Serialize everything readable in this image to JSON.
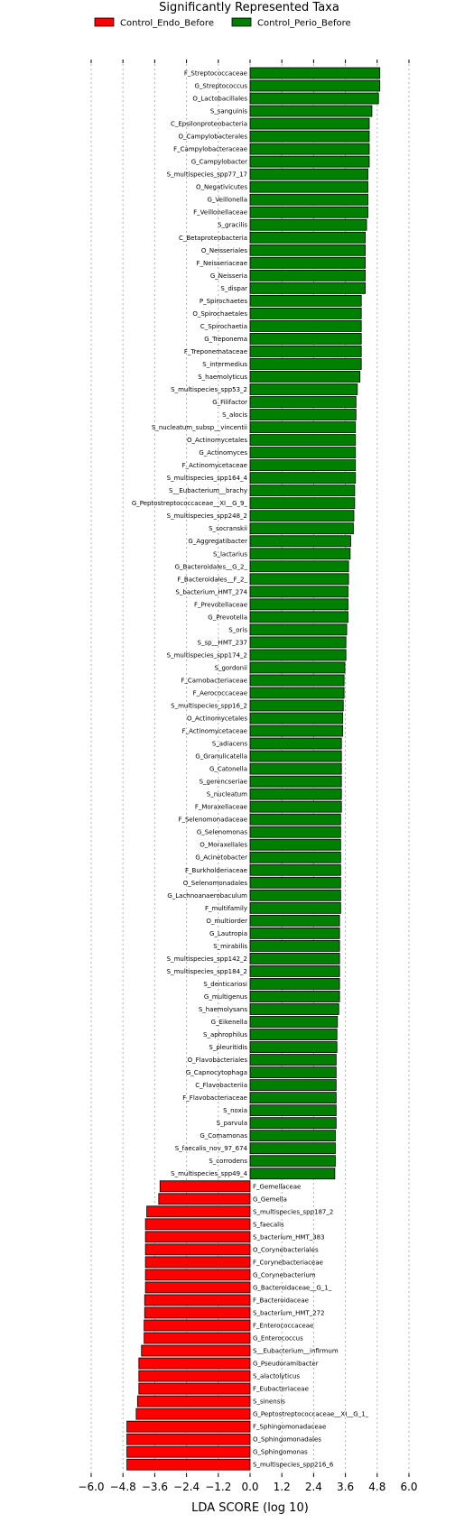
{
  "chart_data": {
    "type": "bar",
    "orientation": "horizontal",
    "title": "Significantly Represented Taxa",
    "xlabel": "LDA SCORE (log 10)",
    "ylabel": "",
    "xlim": [
      -6.0,
      6.0
    ],
    "xticks": [
      -6.0,
      -4.8,
      -3.6,
      -2.4,
      -1.2,
      0.0,
      1.2,
      2.4,
      3.6,
      4.8,
      6.0
    ],
    "xtick_labels": [
      "−6.0",
      "−4.8",
      "−3.6",
      "−2.4",
      "−1.2",
      "0.0",
      "1.2",
      "2.4",
      "3.6",
      "4.8",
      "6.0"
    ],
    "grid": "vertical dashed",
    "legend_position": "top",
    "series": [
      {
        "name": "Control_Endo_Before",
        "color": "#ff0000"
      },
      {
        "name": "Control_Perio_Before",
        "color": "#008000"
      }
    ],
    "bars": [
      {
        "label": "F_Streptococcaceae",
        "value": 4.9,
        "group": "Control_Perio_Before"
      },
      {
        "label": "G_Streptococcus",
        "value": 4.9,
        "group": "Control_Perio_Before"
      },
      {
        "label": "O_Lactobacillales",
        "value": 4.85,
        "group": "Control_Perio_Before"
      },
      {
        "label": "S_sanguinis",
        "value": 4.6,
        "group": "Control_Perio_Before"
      },
      {
        "label": "C_Epsilonproteobacteria",
        "value": 4.5,
        "group": "Control_Perio_Before"
      },
      {
        "label": "O_Campylobacterales",
        "value": 4.5,
        "group": "Control_Perio_Before"
      },
      {
        "label": "F_Campylobacteraceae",
        "value": 4.5,
        "group": "Control_Perio_Before"
      },
      {
        "label": "G_Campylobacter",
        "value": 4.5,
        "group": "Control_Perio_Before"
      },
      {
        "label": "S_multispecies_spp77_17",
        "value": 4.45,
        "group": "Control_Perio_Before"
      },
      {
        "label": "O_Negativicutes",
        "value": 4.45,
        "group": "Control_Perio_Before"
      },
      {
        "label": "G_Veillonella",
        "value": 4.45,
        "group": "Control_Perio_Before"
      },
      {
        "label": "F_Veillonellaceae",
        "value": 4.45,
        "group": "Control_Perio_Before"
      },
      {
        "label": "S_gracilis",
        "value": 4.4,
        "group": "Control_Perio_Before"
      },
      {
        "label": "C_Betaproteobacteria",
        "value": 4.35,
        "group": "Control_Perio_Before"
      },
      {
        "label": "O_Neisseriales",
        "value": 4.35,
        "group": "Control_Perio_Before"
      },
      {
        "label": "F_Neisseriaceae",
        "value": 4.35,
        "group": "Control_Perio_Before"
      },
      {
        "label": "G_Neisseria",
        "value": 4.35,
        "group": "Control_Perio_Before"
      },
      {
        "label": "S_dispar",
        "value": 4.35,
        "group": "Control_Perio_Before"
      },
      {
        "label": "P_Spirochaetes",
        "value": 4.2,
        "group": "Control_Perio_Before"
      },
      {
        "label": "O_Spirochaetales",
        "value": 4.2,
        "group": "Control_Perio_Before"
      },
      {
        "label": "C_Spirochaetia",
        "value": 4.2,
        "group": "Control_Perio_Before"
      },
      {
        "label": "G_Treponema",
        "value": 4.2,
        "group": "Control_Perio_Before"
      },
      {
        "label": "F_Treponemataceae",
        "value": 4.2,
        "group": "Control_Perio_Before"
      },
      {
        "label": "S_intermedius",
        "value": 4.2,
        "group": "Control_Perio_Before"
      },
      {
        "label": "S_haemolyticus",
        "value": 4.15,
        "group": "Control_Perio_Before"
      },
      {
        "label": "S_multispecies_spp53_2",
        "value": 4.05,
        "group": "Control_Perio_Before"
      },
      {
        "label": "G_Filifactor",
        "value": 4.0,
        "group": "Control_Perio_Before"
      },
      {
        "label": "S_alocis",
        "value": 4.0,
        "group": "Control_Perio_Before"
      },
      {
        "label": "S_nucleatum_subsp__vincentii",
        "value": 3.98,
        "group": "Control_Perio_Before"
      },
      {
        "label": "O_Actinomycetales",
        "value": 3.98,
        "group": "Control_Perio_Before"
      },
      {
        "label": "G_Actinomyces",
        "value": 3.98,
        "group": "Control_Perio_Before"
      },
      {
        "label": "F_Actinomycetaceae",
        "value": 3.98,
        "group": "Control_Perio_Before"
      },
      {
        "label": "S_multispecies_spp164_4",
        "value": 3.98,
        "group": "Control_Perio_Before"
      },
      {
        "label": "S__Eubacterium__brachy",
        "value": 3.95,
        "group": "Control_Perio_Before"
      },
      {
        "label": "G_Peptostreptococcaceae__XI__G_9_",
        "value": 3.95,
        "group": "Control_Perio_Before"
      },
      {
        "label": "S_multispecies_spp248_2",
        "value": 3.92,
        "group": "Control_Perio_Before"
      },
      {
        "label": "S_socranskii",
        "value": 3.9,
        "group": "Control_Perio_Before"
      },
      {
        "label": "G_Aggregatibacter",
        "value": 3.8,
        "group": "Control_Perio_Before"
      },
      {
        "label": "S_lactarius",
        "value": 3.78,
        "group": "Control_Perio_Before"
      },
      {
        "label": "G_Bacteroidales__G_2_",
        "value": 3.72,
        "group": "Control_Perio_Before"
      },
      {
        "label": "F_Bacteroidales__F_2_",
        "value": 3.72,
        "group": "Control_Perio_Before"
      },
      {
        "label": "S_bacterium_HMT_274",
        "value": 3.7,
        "group": "Control_Perio_Before"
      },
      {
        "label": "F_Prevotellaceae",
        "value": 3.7,
        "group": "Control_Perio_Before"
      },
      {
        "label": "G_Prevotella",
        "value": 3.7,
        "group": "Control_Perio_Before"
      },
      {
        "label": "S_oris",
        "value": 3.65,
        "group": "Control_Perio_Before"
      },
      {
        "label": "S_sp__HMT_237",
        "value": 3.62,
        "group": "Control_Perio_Before"
      },
      {
        "label": "S_multispecies_spp174_2",
        "value": 3.62,
        "group": "Control_Perio_Before"
      },
      {
        "label": "S_gordonii",
        "value": 3.58,
        "group": "Control_Perio_Before"
      },
      {
        "label": "F_Carnobacteriaceae",
        "value": 3.55,
        "group": "Control_Perio_Before"
      },
      {
        "label": "F_Aerococcaceae",
        "value": 3.55,
        "group": "Control_Perio_Before"
      },
      {
        "label": "S_multispecies_spp16_2",
        "value": 3.52,
        "group": "Control_Perio_Before"
      },
      {
        "label": "O_Actinomycetales",
        "value": 3.5,
        "group": "Control_Perio_Before"
      },
      {
        "label": "F_Actinomycetaceae",
        "value": 3.5,
        "group": "Control_Perio_Before"
      },
      {
        "label": "S_adiacens",
        "value": 3.45,
        "group": "Control_Perio_Before"
      },
      {
        "label": "G_Granulicatella",
        "value": 3.45,
        "group": "Control_Perio_Before"
      },
      {
        "label": "G_Catonella",
        "value": 3.45,
        "group": "Control_Perio_Before"
      },
      {
        "label": "S_gerencseriae",
        "value": 3.45,
        "group": "Control_Perio_Before"
      },
      {
        "label": "S_nucleatum",
        "value": 3.45,
        "group": "Control_Perio_Before"
      },
      {
        "label": "F_Moraxellaceae",
        "value": 3.45,
        "group": "Control_Perio_Before"
      },
      {
        "label": "F_Selenomonadaceae",
        "value": 3.42,
        "group": "Control_Perio_Before"
      },
      {
        "label": "G_Selenomonas",
        "value": 3.42,
        "group": "Control_Perio_Before"
      },
      {
        "label": "O_Moraxellales",
        "value": 3.42,
        "group": "Control_Perio_Before"
      },
      {
        "label": "G_Acinetobacter",
        "value": 3.42,
        "group": "Control_Perio_Before"
      },
      {
        "label": "F_Burkholderiaceae",
        "value": 3.42,
        "group": "Control_Perio_Before"
      },
      {
        "label": "O_Selenomonadales",
        "value": 3.42,
        "group": "Control_Perio_Before"
      },
      {
        "label": "G_Lachnoanaerobaculum",
        "value": 3.42,
        "group": "Control_Perio_Before"
      },
      {
        "label": "F_multifamily",
        "value": 3.42,
        "group": "Control_Perio_Before"
      },
      {
        "label": "O_multiorder",
        "value": 3.38,
        "group": "Control_Perio_Before"
      },
      {
        "label": "G_Lautropia",
        "value": 3.38,
        "group": "Control_Perio_Before"
      },
      {
        "label": "S_mirabilis",
        "value": 3.38,
        "group": "Control_Perio_Before"
      },
      {
        "label": "S_multispecies_spp142_2",
        "value": 3.38,
        "group": "Control_Perio_Before"
      },
      {
        "label": "S_multispecies_spp184_2",
        "value": 3.38,
        "group": "Control_Perio_Before"
      },
      {
        "label": "S_denticariosi",
        "value": 3.38,
        "group": "Control_Perio_Before"
      },
      {
        "label": "G_multigenus",
        "value": 3.38,
        "group": "Control_Perio_Before"
      },
      {
        "label": "S_haemolysans",
        "value": 3.35,
        "group": "Control_Perio_Before"
      },
      {
        "label": "G_Eikenella",
        "value": 3.3,
        "group": "Control_Perio_Before"
      },
      {
        "label": "S_aphrophilus",
        "value": 3.28,
        "group": "Control_Perio_Before"
      },
      {
        "label": "S_pleuritidis",
        "value": 3.28,
        "group": "Control_Perio_Before"
      },
      {
        "label": "O_Flavobacteriales",
        "value": 3.25,
        "group": "Control_Perio_Before"
      },
      {
        "label": "G_Capnocytophaga",
        "value": 3.25,
        "group": "Control_Perio_Before"
      },
      {
        "label": "C_Flavobacteriia",
        "value": 3.25,
        "group": "Control_Perio_Before"
      },
      {
        "label": "F_Flavobacteriaceae",
        "value": 3.25,
        "group": "Control_Perio_Before"
      },
      {
        "label": "S_noxia",
        "value": 3.25,
        "group": "Control_Perio_Before"
      },
      {
        "label": "S_parvula",
        "value": 3.25,
        "group": "Control_Perio_Before"
      },
      {
        "label": "G_Comamonas",
        "value": 3.22,
        "group": "Control_Perio_Before"
      },
      {
        "label": "S_faecalis_nov_97_674",
        "value": 3.22,
        "group": "Control_Perio_Before"
      },
      {
        "label": "S_corrodens",
        "value": 3.22,
        "group": "Control_Perio_Before"
      },
      {
        "label": "S_multispecies_spp49_4",
        "value": 3.2,
        "group": "Control_Perio_Before"
      },
      {
        "label": "F_Gemellaceae",
        "value": -3.4,
        "group": "Control_Endo_Before"
      },
      {
        "label": "G_Gemella",
        "value": -3.45,
        "group": "Control_Endo_Before"
      },
      {
        "label": "S_multispecies_spp187_2",
        "value": -3.9,
        "group": "Control_Endo_Before"
      },
      {
        "label": "S_faecalis",
        "value": -3.95,
        "group": "Control_Endo_Before"
      },
      {
        "label": "S_bacterium_HMT_383",
        "value": -3.95,
        "group": "Control_Endo_Before"
      },
      {
        "label": "O_Corynebacteriales",
        "value": -3.95,
        "group": "Control_Endo_Before"
      },
      {
        "label": "F_Corynebacteriaceae",
        "value": -3.95,
        "group": "Control_Endo_Before"
      },
      {
        "label": "G_Corynebacterium",
        "value": -3.95,
        "group": "Control_Endo_Before"
      },
      {
        "label": "G_Bacteroidaceae__G_1_",
        "value": -3.95,
        "group": "Control_Endo_Before"
      },
      {
        "label": "F_Bacteroidaceae",
        "value": -3.98,
        "group": "Control_Endo_Before"
      },
      {
        "label": "S_bacterium_HMT_272",
        "value": -3.98,
        "group": "Control_Endo_Before"
      },
      {
        "label": "F_Enterococcaceae",
        "value": -4.0,
        "group": "Control_Endo_Before"
      },
      {
        "label": "G_Enterococcus",
        "value": -4.0,
        "group": "Control_Endo_Before"
      },
      {
        "label": "S__Eubacterium__infirmum",
        "value": -4.1,
        "group": "Control_Endo_Before"
      },
      {
        "label": "G_Pseudoramibacter",
        "value": -4.2,
        "group": "Control_Endo_Before"
      },
      {
        "label": "S_alactolyticus",
        "value": -4.2,
        "group": "Control_Endo_Before"
      },
      {
        "label": "F_Eubacteriaceae",
        "value": -4.2,
        "group": "Control_Endo_Before"
      },
      {
        "label": "S_sinensis",
        "value": -4.25,
        "group": "Control_Endo_Before"
      },
      {
        "label": "G_Peptostreptococcaceae__XI__G_1_",
        "value": -4.3,
        "group": "Control_Endo_Before"
      },
      {
        "label": "F_Sphingomonadaceae",
        "value": -4.65,
        "group": "Control_Endo_Before"
      },
      {
        "label": "O_Sphingomonadales",
        "value": -4.65,
        "group": "Control_Endo_Before"
      },
      {
        "label": "G_Sphingomonas",
        "value": -4.65,
        "group": "Control_Endo_Before"
      },
      {
        "label": "S_multispecies_spp216_6",
        "value": -4.65,
        "group": "Control_Endo_Before"
      }
    ]
  }
}
